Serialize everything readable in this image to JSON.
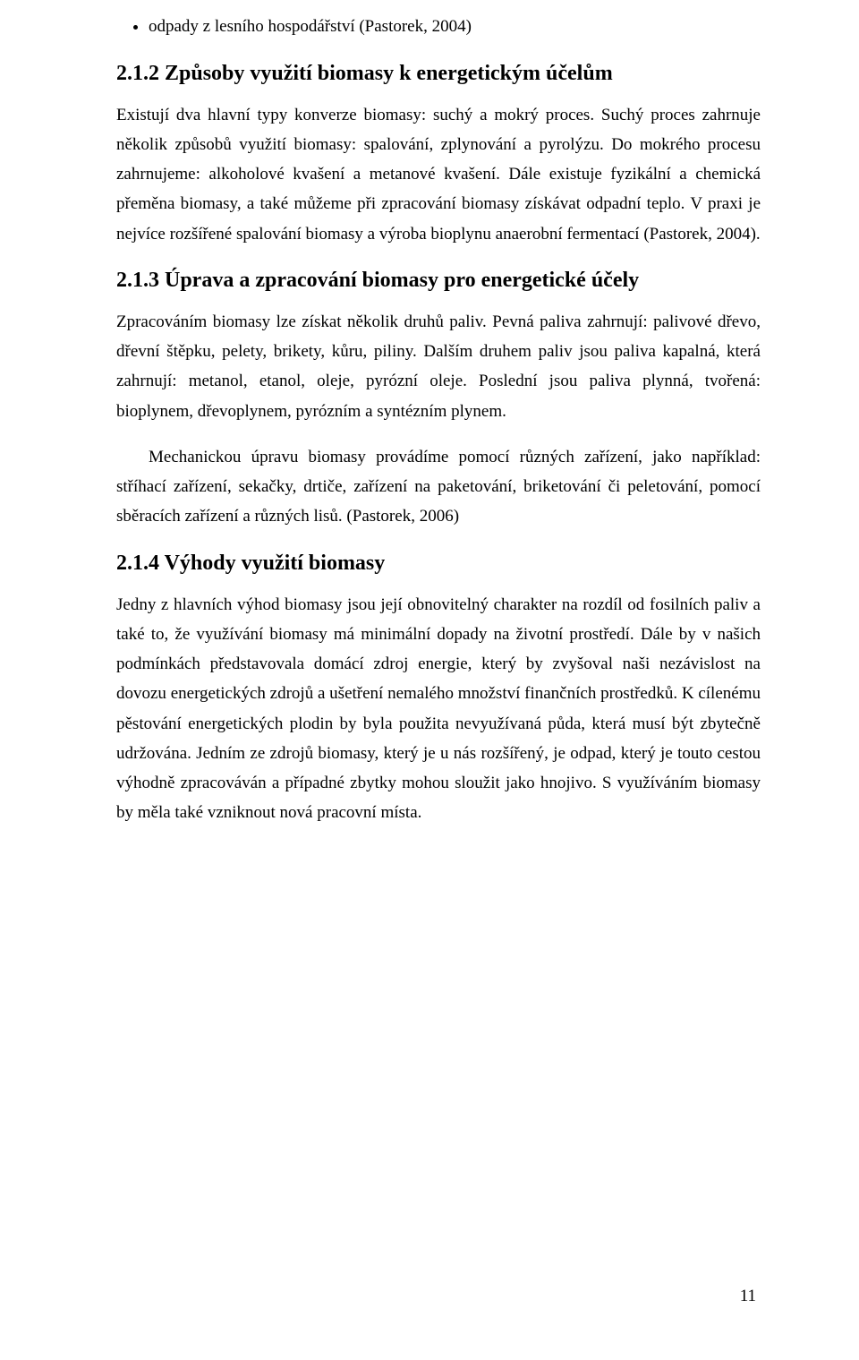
{
  "bullet": {
    "item1": "odpady z lesního hospodářství (Pastorek, 2004)"
  },
  "sections": {
    "s212": {
      "heading": "2.1.2  Způsoby využití biomasy k energetickým účelům",
      "p1": "Existují dva hlavní typy konverze biomasy: suchý a mokrý proces. Suchý proces zahrnuje několik způsobů využití biomasy: spalování, zplynování a  pyrolýzu. Do mokrého procesu zahrnujeme: alkoholové kvašení a metanové kvašení. Dále existuje fyzikální a chemická přeměna biomasy, a také můžeme při zpracování biomasy získávat odpadní teplo. V praxi je nejvíce rozšířené spalování biomasy a výroba bioplynu anaerobní fermentací (Pastorek, 2004)."
    },
    "s213": {
      "heading": "2.1.3  Úprava a zpracování biomasy pro energetické účely",
      "p1": "Zpracováním biomasy lze získat několik druhů paliv. Pevná paliva zahrnují: palivové dřevo, dřevní štěpku, pelety, brikety, kůru, piliny. Dalším druhem paliv jsou paliva kapalná, která zahrnují: metanol, etanol, oleje, pyrózní oleje. Poslední jsou paliva plynná, tvořená: bioplynem, dřevoplynem, pyrózním a syntézním plynem.",
      "p2": "Mechanickou úpravu biomasy provádíme pomocí různých zařízení, jako například: stříhací zařízení, sekačky, drtiče, zařízení na paketování, briketování či peletování, pomocí sběracích zařízení a různých lisů. (Pastorek, 2006)"
    },
    "s214": {
      "heading": "2.1.4  Výhody využití biomasy",
      "p1": "Jedny z hlavních výhod biomasy jsou její obnovitelný charakter na rozdíl od fosilních paliv a také to, že využívání biomasy má minimální dopady na životní prostředí. Dále by v našich podmínkách představovala domácí zdroj energie, který by zvyšoval naši nezávislost na dovozu energetických zdrojů a ušetření nemalého množství finančních prostředků. K cílenému pěstování energetických plodin by byla použita nevyužívaná půda, která musí být zbytečně udržována. Jedním ze zdrojů biomasy, který je u nás rozšířený, je odpad, který je touto cestou výhodně zpracováván a případné zbytky mohou sloužit jako hnojivo. S využíváním biomasy by měla také vzniknout nová pracovní místa."
    }
  },
  "pageNumber": "11"
}
